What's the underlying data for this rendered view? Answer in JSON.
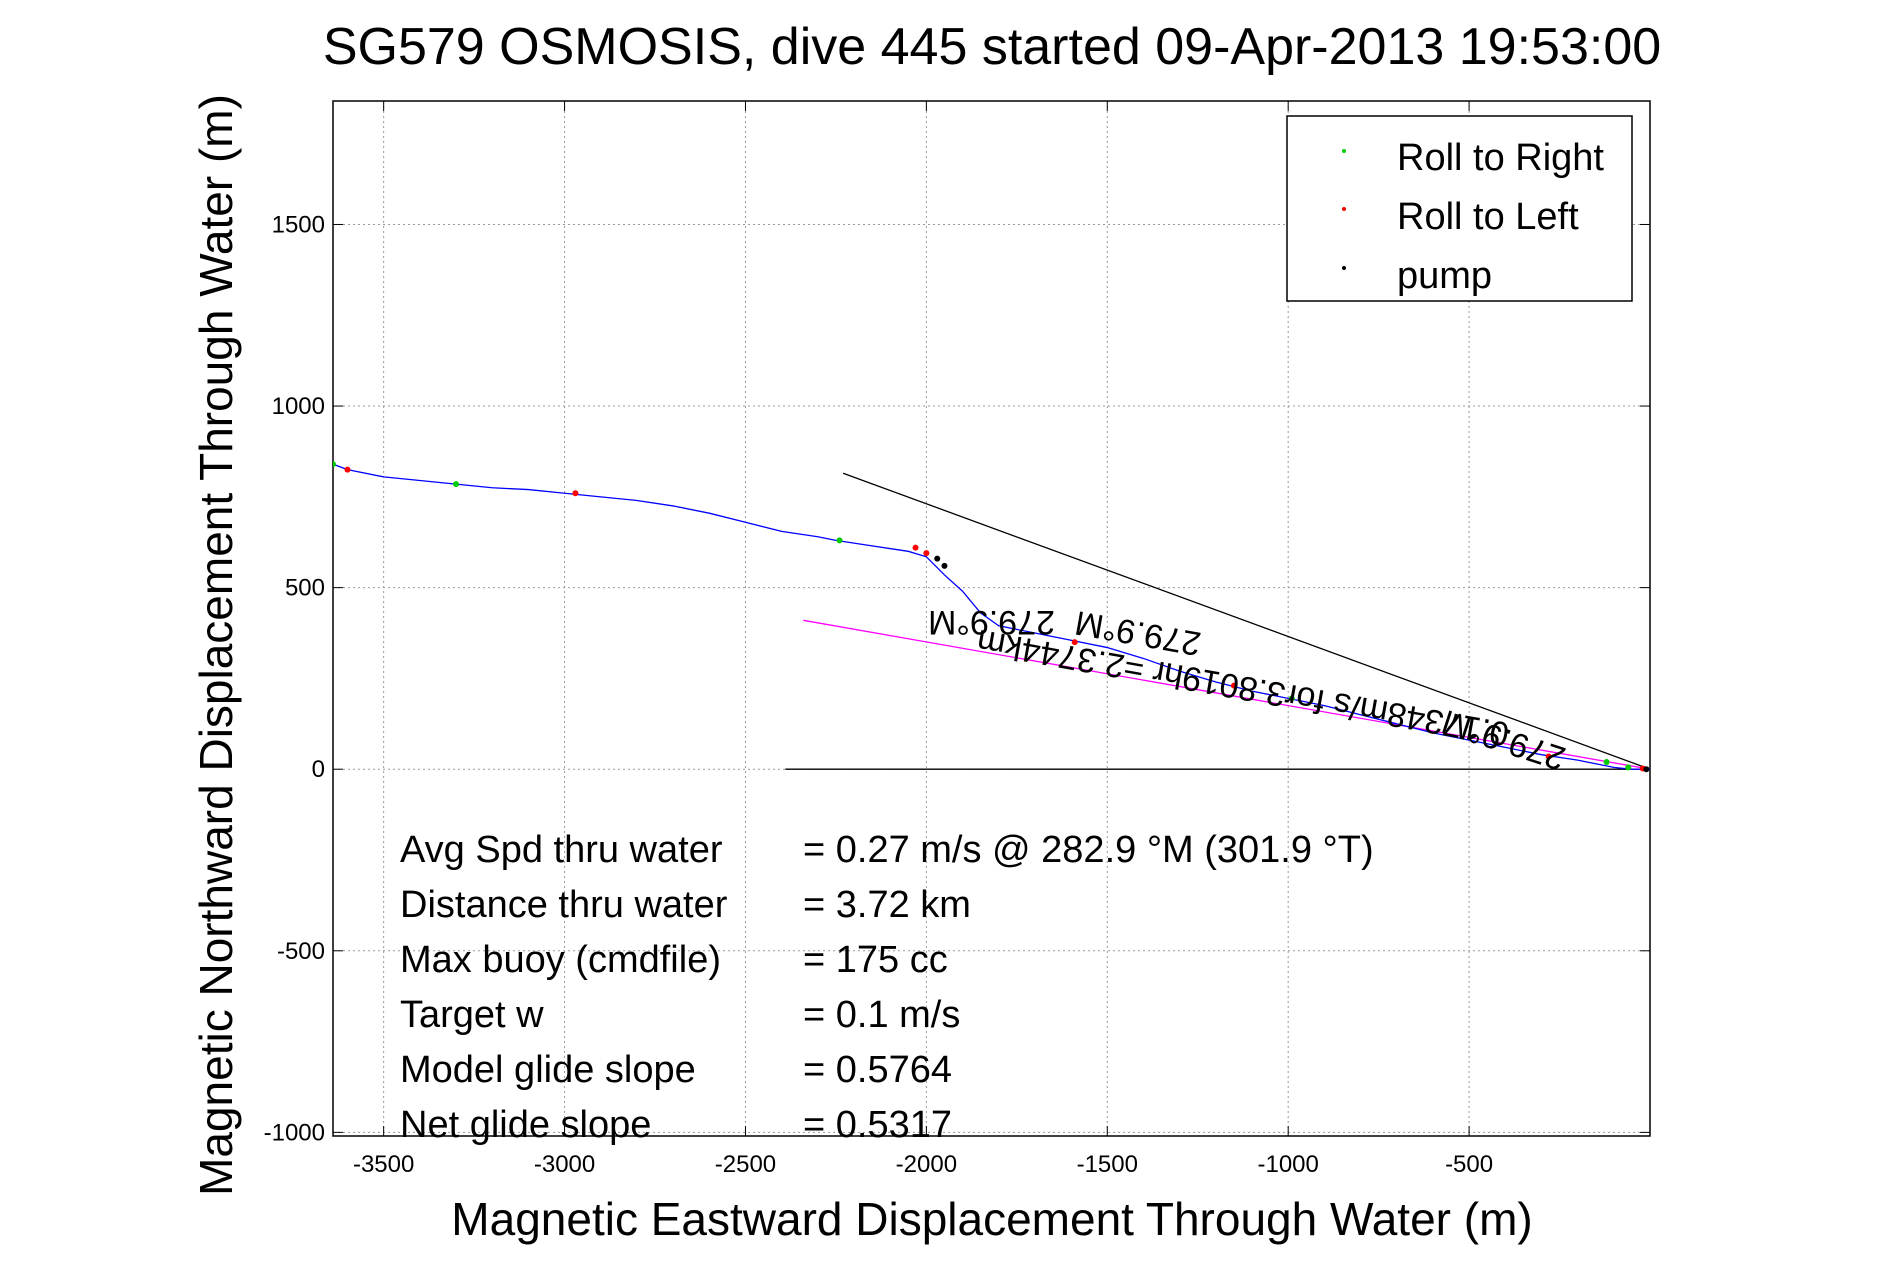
{
  "chart_data": {
    "type": "line",
    "title": "SG579 OSMOSIS, dive 445 started 09-Apr-2013 19:53:00",
    "xlabel": "Magnetic Eastward Displacement Through Water (m)",
    "ylabel": "Magnetic Northward Displacement Through Water (m)",
    "xlim": [
      -3640,
      0
    ],
    "ylim": [
      -1010,
      1840
    ],
    "xticks": [
      -3500,
      -3000,
      -2500,
      -2000,
      -1500,
      -1000,
      -500
    ],
    "yticks": [
      1500,
      1000,
      500,
      0,
      -500,
      -1000
    ],
    "grid": true,
    "legend_placement": "top-right",
    "legend": [
      {
        "label": "Roll to Right",
        "color": "#00cc00"
      },
      {
        "label": "Roll to Left",
        "color": "#ff0000"
      },
      {
        "label": "pump",
        "color": "#000000"
      }
    ],
    "series": [
      {
        "color": "#0000ff",
        "x": [
          -3640,
          -3600,
          -3500,
          -3400,
          -3300,
          -3200,
          -3100,
          -3000,
          -2900,
          -2800,
          -2700,
          -2600,
          -2500,
          -2400,
          -2300,
          -2250,
          -2150,
          -2050,
          -2000,
          -1950,
          -1900,
          -1850,
          -1800,
          -1700,
          -1600,
          -1500,
          -1400,
          -1300,
          -1200,
          -1100,
          -1000,
          -900,
          -800,
          -700,
          -600,
          -500,
          -400,
          -300,
          -200,
          -150,
          -100,
          -50,
          0
        ],
        "y": [
          840,
          825,
          805,
          795,
          785,
          775,
          770,
          760,
          750,
          740,
          725,
          705,
          680,
          655,
          640,
          630,
          615,
          600,
          585,
          535,
          490,
          430,
          395,
          375,
          355,
          335,
          305,
          270,
          240,
          215,
          195,
          175,
          150,
          125,
          100,
          80,
          60,
          40,
          25,
          15,
          5,
          0,
          0
        ]
      }
    ],
    "event_markers": {
      "roll_right": [
        [
          -3640,
          840
        ],
        [
          -3300,
          785
        ],
        [
          -2240,
          630
        ],
        [
          -990,
          195
        ],
        [
          -120,
          20
        ],
        [
          -60,
          5
        ]
      ],
      "roll_left": [
        [
          -3600,
          825
        ],
        [
          -2970,
          760
        ],
        [
          -2030,
          610
        ],
        [
          -2000,
          595
        ],
        [
          -1590,
          350
        ],
        [
          -1150,
          230
        ],
        [
          -280,
          35
        ],
        [
          -20,
          2
        ]
      ],
      "pump": [
        [
          -1970,
          580
        ],
        [
          -1950,
          560
        ],
        [
          -10,
          0
        ]
      ]
    },
    "reference_lines": [
      {
        "color": "#000000",
        "x": [
          -2230,
          0
        ],
        "y": [
          815,
          0
        ]
      },
      {
        "color": "#ff00ff",
        "x": [
          -2340,
          0
        ],
        "y": [
          410,
          0
        ]
      },
      {
        "color": "#000000",
        "x": [
          -2390,
          0
        ],
        "y": [
          0,
          0
        ]
      }
    ],
    "rotated_annotations": [
      {
        "text": "279.9°M",
        "x": -1820,
        "y": 435,
        "angle": 180
      },
      {
        "text": "0.17348m/s for3.8019hr =2.3744km",
        "x": -1120,
        "y": 255,
        "angle": 190
      },
      {
        "text": "279.9°M",
        "x": -1410,
        "y": 405,
        "angle": 190
      },
      {
        "text": "279.9°M",
        "x": -395,
        "y": 110,
        "angle": 198
      }
    ],
    "stats": [
      {
        "label": "Avg Spd thru water",
        "value": "=  0.27 m/s @ 282.9 °M (301.9 °T)"
      },
      {
        "label": "Distance thru water",
        "value": "=  3.72 km"
      },
      {
        "label": "Max buoy (cmdfile)",
        "value": "= 175 cc"
      },
      {
        "label": "Target w",
        "value": "= 0.1 m/s"
      },
      {
        "label": "Model glide slope",
        "value": "= 0.5764"
      },
      {
        "label": "Net glide slope",
        "value": "= 0.5317"
      }
    ]
  }
}
